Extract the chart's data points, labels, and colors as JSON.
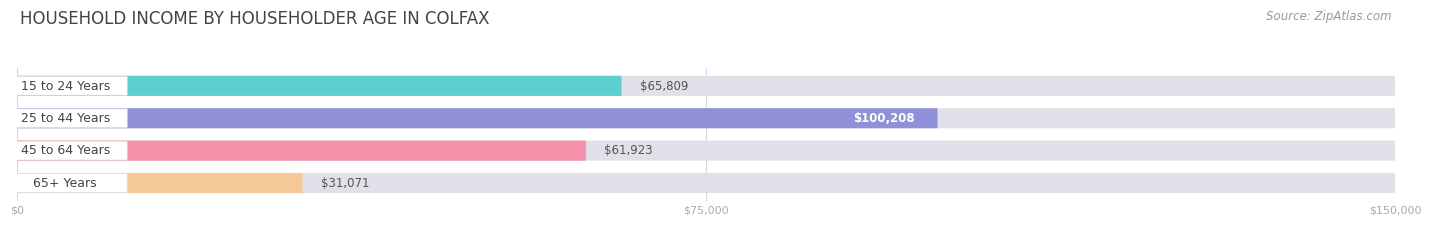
{
  "title": "HOUSEHOLD INCOME BY HOUSEHOLDER AGE IN COLFAX",
  "source": "Source: ZipAtlas.com",
  "categories": [
    "15 to 24 Years",
    "25 to 44 Years",
    "45 to 64 Years",
    "65+ Years"
  ],
  "values": [
    65809,
    100208,
    61923,
    31071
  ],
  "bar_colors": [
    "#5dcfcf",
    "#9090d8",
    "#f590aa",
    "#f5c898"
  ],
  "bar_bg_color": "#e0e0e8",
  "value_label_colors": [
    "#555555",
    "#ffffff",
    "#555555",
    "#555555"
  ],
  "xlim": [
    0,
    150000
  ],
  "xticks": [
    0,
    75000,
    150000
  ],
  "xtick_labels": [
    "$0",
    "$75,000",
    "$150,000"
  ],
  "value_labels": [
    "$65,809",
    "$100,208",
    "$61,923",
    "$31,071"
  ],
  "title_fontsize": 12,
  "source_fontsize": 8.5,
  "bar_height": 0.62,
  "background_color": "#ffffff",
  "grid_color": "#d8d8e0",
  "label_pill_color": "#ffffff",
  "label_text_color": "#444444",
  "cat_label_fontsize": 9,
  "val_label_fontsize": 8.5
}
